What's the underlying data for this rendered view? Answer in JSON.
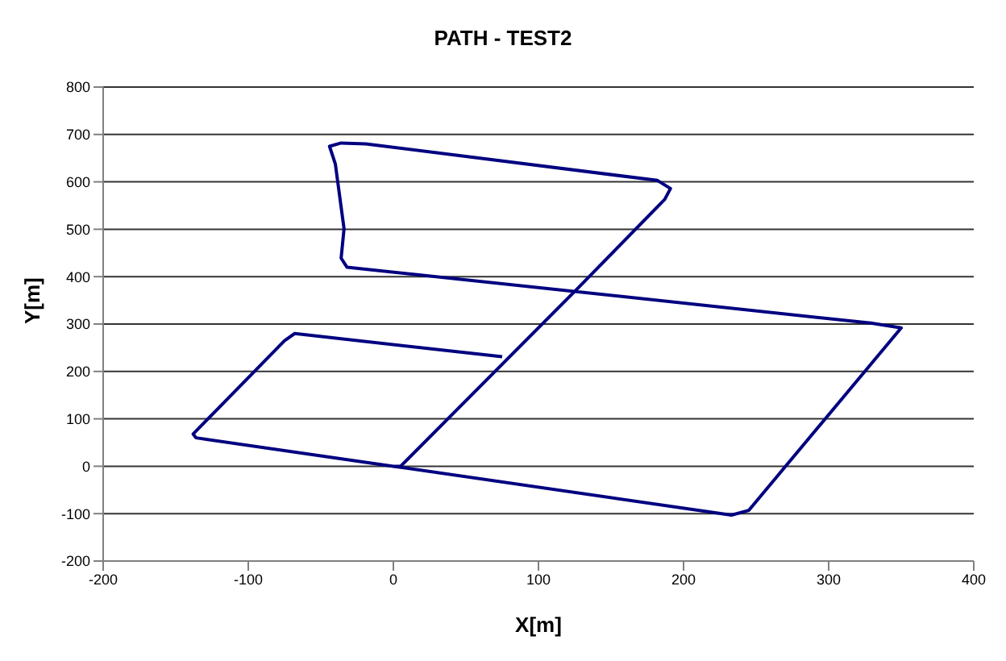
{
  "chart_data": {
    "type": "line",
    "title": "PATH - TEST2",
    "xlabel": "X[m]",
    "ylabel": "Y[m]",
    "series": [
      {
        "color": "#000080",
        "x": [
          0,
          233,
          245,
          350,
          329,
          -32,
          -36,
          -34,
          -40,
          -44,
          -36,
          -19,
          182,
          191,
          187,
          126,
          5,
          0,
          -136,
          -138,
          -75,
          -68,
          75
        ],
        "values": [
          0,
          -103,
          -93,
          292,
          302,
          420,
          439,
          501,
          638,
          675,
          682,
          680,
          603,
          586,
          563,
          372,
          0,
          0,
          60,
          68,
          265,
          280,
          231
        ]
      }
    ],
    "xlim": [
      -200,
      400
    ],
    "xticks": [
      -200,
      -100,
      0,
      100,
      200,
      300,
      400
    ],
    "ylim": [
      -200,
      800
    ],
    "yticks": [
      -200,
      -100,
      0,
      100,
      200,
      300,
      400,
      500,
      600,
      700,
      800
    ],
    "grid": "y",
    "marker": "none",
    "line_style": "solid"
  }
}
